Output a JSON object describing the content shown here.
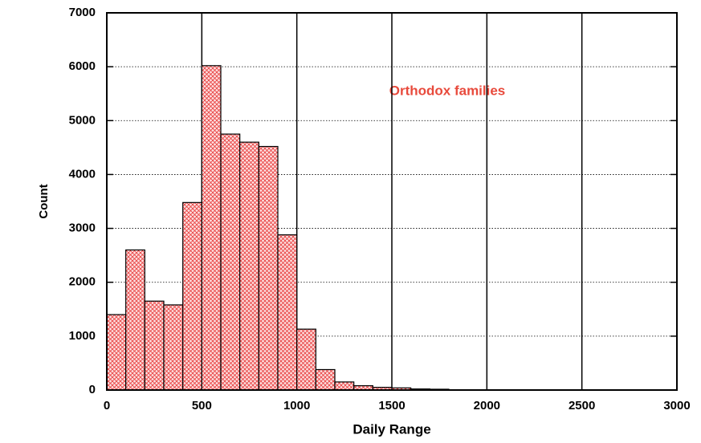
{
  "chart_data": {
    "type": "histogram",
    "xlabel": "Daily Range",
    "ylabel": "Count",
    "annotation": "Orthodox families",
    "bins": [
      0,
      100,
      200,
      300,
      400,
      500,
      600,
      700,
      800,
      900,
      1000,
      1100,
      1200,
      1300,
      1400,
      1500,
      1600,
      1700,
      1800
    ],
    "values": [
      1400,
      2600,
      1650,
      1580,
      3480,
      6020,
      4750,
      4600,
      4520,
      2880,
      1130,
      380,
      150,
      80,
      50,
      40,
      20,
      15
    ],
    "color": "#e83c3c",
    "xlim": [
      0,
      3000
    ],
    "xticks": [
      0,
      500,
      1000,
      1500,
      2000,
      2500,
      3000
    ],
    "ylim": [
      0,
      7000
    ],
    "yticks": [
      0,
      1000,
      2000,
      3000,
      4000,
      5000,
      6000,
      7000
    ],
    "grid": true
  }
}
